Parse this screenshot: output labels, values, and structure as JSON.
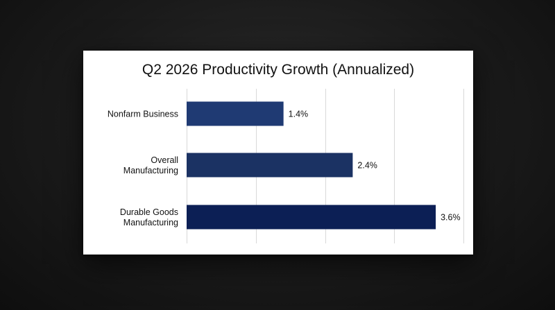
{
  "chart_data": {
    "type": "bar",
    "orientation": "horizontal",
    "title": "Q2 2026 Productivity Growth (Annualized)",
    "xlabel": "",
    "ylabel": "",
    "categories": [
      [
        "Nonfarm Business"
      ],
      [
        "Overall",
        "Manufacturing"
      ],
      [
        "Durable Goods",
        "Manufacturing"
      ]
    ],
    "values": [
      1.4,
      2.4,
      3.6
    ],
    "value_labels": [
      "1.4%",
      "2.4%",
      "3.6%"
    ],
    "bar_colors": [
      "#1f3a73",
      "#1b3263",
      "#0c1f55"
    ],
    "xlim": [
      0,
      4
    ],
    "grid": true,
    "legend": false
  }
}
